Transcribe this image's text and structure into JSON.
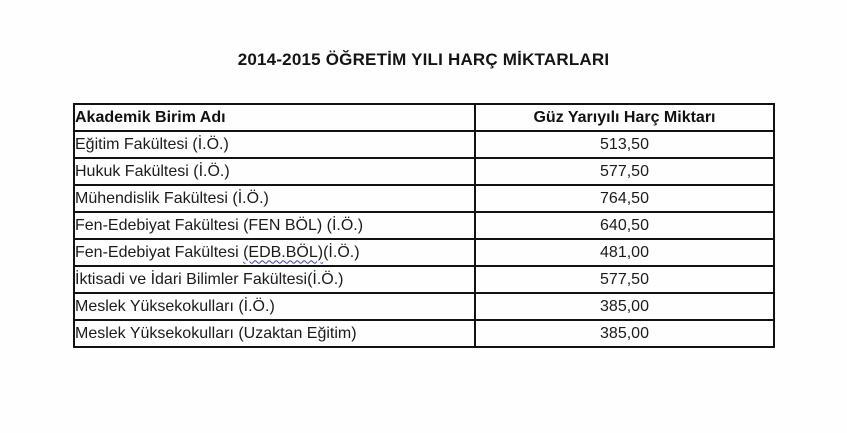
{
  "title": "2014-2015 ÖĞRETİM YILI HARÇ MİKTARLARI",
  "table": {
    "headers": {
      "unit": "Akademik Birim Adı",
      "fee": "Güz Yarıyılı Harç Miktarı"
    },
    "rows": [
      {
        "name": "Eğitim Fakültesi (İ.Ö.)",
        "amount": "513,50"
      },
      {
        "name": "Hukuk Fakültesi (İ.Ö.)",
        "amount": "577,50"
      },
      {
        "name": "Mühendislik Fakültesi (İ.Ö.)",
        "amount": "764,50"
      },
      {
        "name": "Fen-Edebiyat Fakültesi (FEN BÖL) (İ.Ö.)",
        "amount": "640,50"
      },
      {
        "name": "Fen-Edebiyat Fakültesi (EDB.BÖL)(İ.Ö.)",
        "name_parts": {
          "prefix": "Fen-Edebiyat Fakültesi ",
          "wavy": "(EDB.BÖL)",
          "suffix": "(İ.Ö.)"
        },
        "amount": "481,00"
      },
      {
        "name": "İktisadi ve İdari Bilimler Fakültesi(İ.Ö.)",
        "amount": "577,50"
      },
      {
        "name": "Meslek Yüksekokulları (İ.Ö.)",
        "amount": "385,00"
      },
      {
        "name": "Meslek Yüksekokulları (Uzaktan Eğitim)",
        "amount": "385,00"
      }
    ],
    "spellcheck_underline_color": "#3c3cc0"
  }
}
